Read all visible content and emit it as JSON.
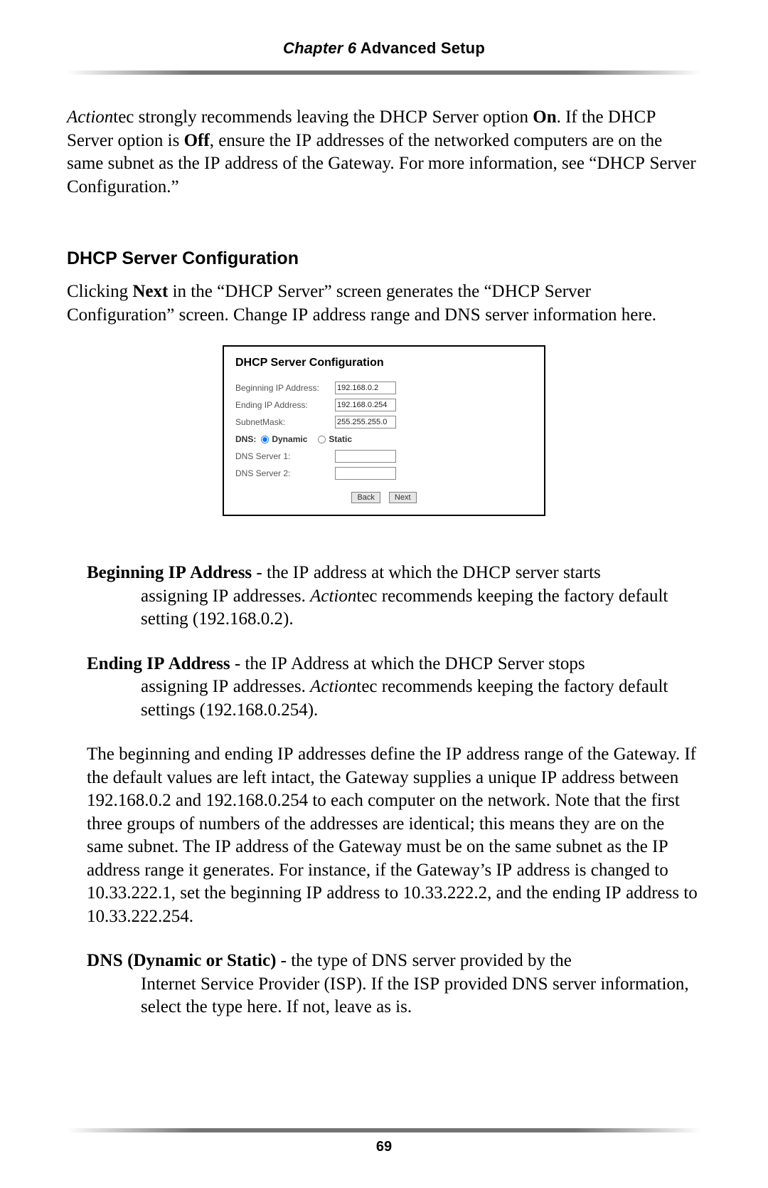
{
  "header": {
    "chapter_italic": "Chapter 6",
    "chapter_bold": " Advanced Setup"
  },
  "intro_para": {
    "segments": [
      {
        "t": "Action",
        "cls": "i"
      },
      {
        "t": "tec strongly recommends leaving the ",
        "cls": ""
      },
      {
        "t": "DHCP",
        "cls": "sc"
      },
      {
        "t": " Server option ",
        "cls": ""
      },
      {
        "t": "On",
        "cls": "b"
      },
      {
        "t": ". If the ",
        "cls": ""
      },
      {
        "t": "DHCP",
        "cls": "sc"
      },
      {
        "t": " Server option is ",
        "cls": ""
      },
      {
        "t": "Off",
        "cls": "b"
      },
      {
        "t": ", ensure the ",
        "cls": ""
      },
      {
        "t": "IP",
        "cls": "sc"
      },
      {
        "t": " addresses of the networked computers are on the same subnet as the ",
        "cls": ""
      },
      {
        "t": "IP",
        "cls": "sc"
      },
      {
        "t": " address of the Gateway. For more information, see “",
        "cls": ""
      },
      {
        "t": "DHCP",
        "cls": "sc"
      },
      {
        "t": " Server Configuration.”",
        "cls": ""
      }
    ]
  },
  "section_heading": "DHCP Server Configuration",
  "section_intro": {
    "segments": [
      {
        "t": "Clicking ",
        "cls": ""
      },
      {
        "t": "Next",
        "cls": "b"
      },
      {
        "t": " in the “",
        "cls": ""
      },
      {
        "t": "DHCP",
        "cls": "sc"
      },
      {
        "t": " Server” screen generates the “",
        "cls": ""
      },
      {
        "t": "DHCP",
        "cls": "sc"
      },
      {
        "t": " Server Configuration” screen. Change ",
        "cls": ""
      },
      {
        "t": "IP",
        "cls": "sc"
      },
      {
        "t": " address range and ",
        "cls": ""
      },
      {
        "t": "DNS",
        "cls": "sc"
      },
      {
        "t": " server information here.",
        "cls": ""
      }
    ]
  },
  "panel": {
    "title": "DHCP Server Configuration",
    "rows": {
      "beginning_ip_label": "Beginning IP Address:",
      "beginning_ip_value": "192.168.0.2",
      "ending_ip_label": "Ending IP Address:",
      "ending_ip_value": "192.168.0.254",
      "subnet_label": "SubnetMask:",
      "subnet_value": "255.255.255.0",
      "dns_label": "DNS:",
      "dns_dynamic": "Dynamic",
      "dns_static": "Static",
      "dns1_label": "DNS Server 1:",
      "dns1_value": "",
      "dns2_label": "DNS Server 2:",
      "dns2_value": ""
    },
    "buttons": {
      "back": "Back",
      "next": "Next"
    }
  },
  "dl": {
    "beginning": {
      "term_segments": [
        {
          "t": "Beginning ",
          "cls": "b"
        },
        {
          "t": "IP",
          "cls": "b sc"
        },
        {
          "t": " Address",
          "cls": "b"
        }
      ],
      "def_segments": [
        {
          "t": " - the ",
          "cls": ""
        },
        {
          "t": "IP",
          "cls": "sc"
        },
        {
          "t": " address at which the ",
          "cls": ""
        },
        {
          "t": "DHCP",
          "cls": "sc"
        },
        {
          "t": " server starts ",
          "cls": ""
        }
      ],
      "cont_segments": [
        {
          "t": "assigning ",
          "cls": ""
        },
        {
          "t": "IP",
          "cls": "sc"
        },
        {
          "t": " addresses. ",
          "cls": ""
        },
        {
          "t": "Action",
          "cls": "i"
        },
        {
          "t": "tec recommends keeping the factory default setting (192.168.0.2).",
          "cls": ""
        }
      ]
    },
    "ending": {
      "term_segments": [
        {
          "t": "Ending ",
          "cls": "b"
        },
        {
          "t": "IP",
          "cls": "b sc"
        },
        {
          "t": " Address",
          "cls": "b"
        }
      ],
      "def_segments": [
        {
          "t": " - the ",
          "cls": ""
        },
        {
          "t": "IP",
          "cls": "sc"
        },
        {
          "t": " Address at which the ",
          "cls": ""
        },
        {
          "t": "DHCP",
          "cls": "sc"
        },
        {
          "t": " Server stops ",
          "cls": ""
        }
      ],
      "cont_segments": [
        {
          "t": "assigning ",
          "cls": ""
        },
        {
          "t": "IP",
          "cls": "sc"
        },
        {
          "t": " addresses. ",
          "cls": ""
        },
        {
          "t": "Action",
          "cls": "i"
        },
        {
          "t": "tec recommends keeping the factory default settings (192.168.0.254).",
          "cls": ""
        }
      ]
    },
    "dns": {
      "term_segments": [
        {
          "t": "DNS",
          "cls": "b sc"
        },
        {
          "t": " (Dynamic ",
          "cls": "b"
        },
        {
          "t": "or",
          "cls": ""
        },
        {
          "t": " Static)",
          "cls": "b"
        }
      ],
      "def_segments": [
        {
          "t": " - the type of ",
          "cls": ""
        },
        {
          "t": "DNS",
          "cls": "sc"
        },
        {
          "t": " server provided by the ",
          "cls": ""
        }
      ],
      "cont_segments": [
        {
          "t": "Internet Service Provider (",
          "cls": ""
        },
        {
          "t": "ISP",
          "cls": "sc"
        },
        {
          "t": "). If the ",
          "cls": ""
        },
        {
          "t": "ISP",
          "cls": "sc"
        },
        {
          "t": " provided ",
          "cls": ""
        },
        {
          "t": "DNS",
          "cls": "sc"
        },
        {
          "t": " server information, select the type here. If not, leave as is.",
          "cls": ""
        }
      ]
    }
  },
  "range_para": {
    "segments": [
      {
        "t": "The beginning and ending ",
        "cls": ""
      },
      {
        "t": "IP",
        "cls": "sc"
      },
      {
        "t": " addresses define the ",
        "cls": ""
      },
      {
        "t": "IP",
        "cls": "sc"
      },
      {
        "t": " address range of the Gateway. If the default values are left intact, the Gateway supplies a unique ",
        "cls": ""
      },
      {
        "t": "IP",
        "cls": "sc"
      },
      {
        "t": " address between 192.168.0.2 and 192.168.0.254 to each computer on the network. Note that the first three groups of numbers of the addresses are identical; this means they are on the same subnet. The ",
        "cls": ""
      },
      {
        "t": "IP",
        "cls": "sc"
      },
      {
        "t": " address of the Gateway must be on the same subnet as the ",
        "cls": ""
      },
      {
        "t": "IP",
        "cls": "sc"
      },
      {
        "t": " address range it generates. For instance, if the Gateway’s ",
        "cls": ""
      },
      {
        "t": "IP",
        "cls": "sc"
      },
      {
        "t": " address is changed to 10.33.222.1, set the beginning ",
        "cls": ""
      },
      {
        "t": "IP",
        "cls": "sc"
      },
      {
        "t": " address to 10.33.222.2, and the ending ",
        "cls": ""
      },
      {
        "t": "IP",
        "cls": "sc"
      },
      {
        "t": " address to 10.33.222.254.",
        "cls": ""
      }
    ]
  },
  "page_number": "69",
  "colors": {
    "text": "#000000",
    "panel_border": "#000000",
    "panel_label": "#555555",
    "button_bg": "#e6e6e6",
    "button_border": "#808080"
  }
}
